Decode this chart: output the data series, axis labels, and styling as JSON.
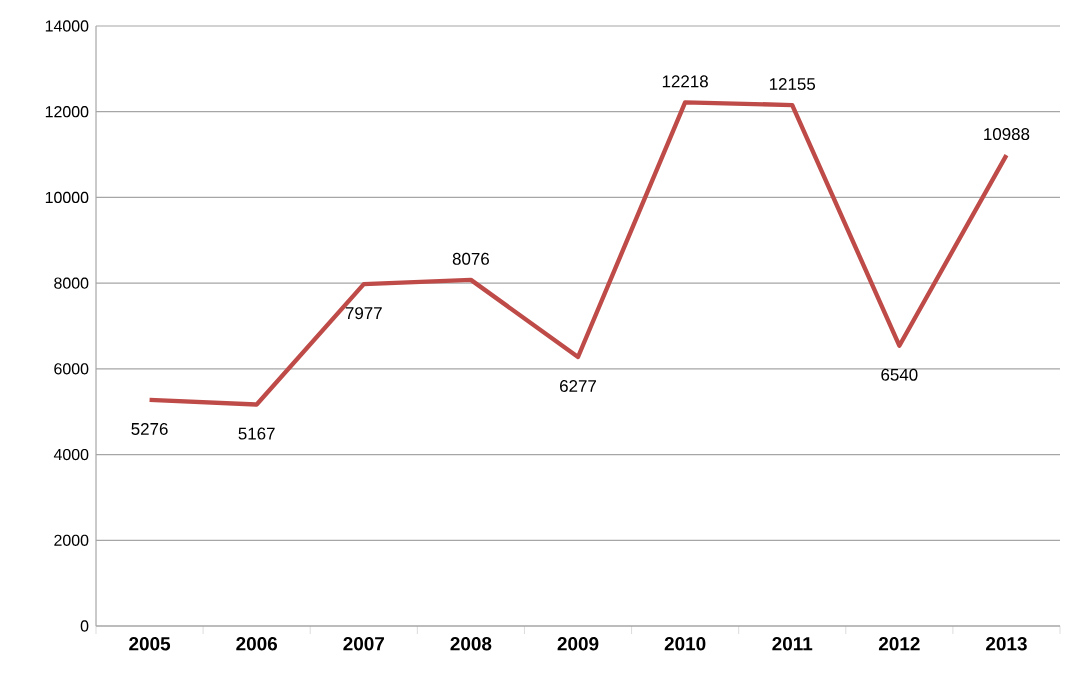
{
  "chart_data": {
    "type": "line",
    "categories": [
      "2005",
      "2006",
      "2007",
      "2008",
      "2009",
      "2010",
      "2011",
      "2012",
      "2013"
    ],
    "series": [
      {
        "color": "#be4b48",
        "values": [
          5276,
          5167,
          7977,
          8076,
          6277,
          12218,
          12155,
          6540,
          10988
        ]
      }
    ],
    "ylim": [
      0,
      14000
    ],
    "yticks": [
      0,
      2000,
      4000,
      6000,
      8000,
      10000,
      12000,
      14000
    ],
    "grid": "y",
    "data_labels": true,
    "marker": "none",
    "line_style": "solid"
  }
}
